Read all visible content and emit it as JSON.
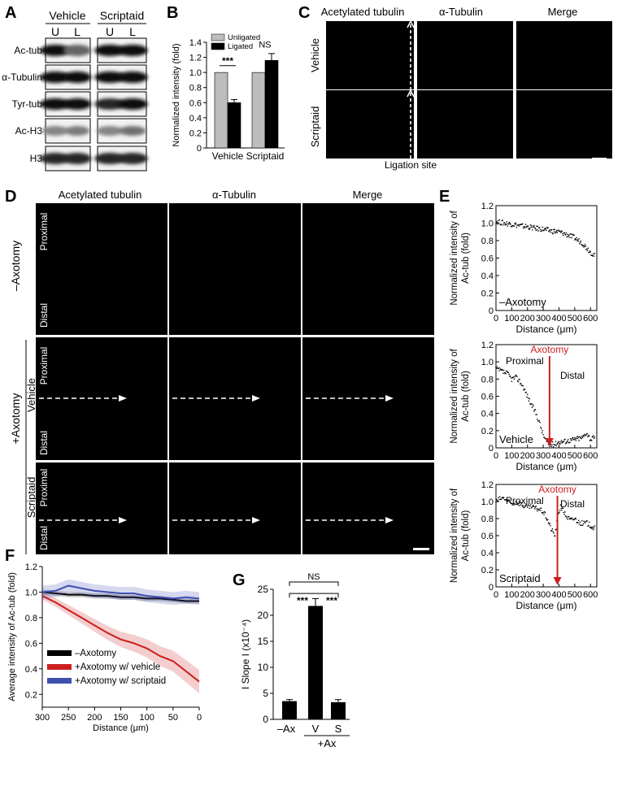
{
  "panel_letters": {
    "a": "A",
    "b": "B",
    "c": "C",
    "d": "D",
    "e": "E",
    "f": "F",
    "g": "G"
  },
  "panelA": {
    "groups": [
      "Vehicle",
      "Scriptaid"
    ],
    "lanes": [
      "U",
      "L",
      "U",
      "L"
    ],
    "rows": [
      "Ac-tub",
      "α-Tubulin",
      "Tyr-tub",
      "Ac-H3",
      "H3"
    ]
  },
  "panelC": {
    "columns": [
      "Acetylated tubulin",
      "α-Tubulin",
      "Merge"
    ],
    "rows": [
      "Vehicle",
      "Scriptaid"
    ],
    "caption": "Ligation site"
  },
  "panelD": {
    "columns": [
      "Acetylated tubulin",
      "α-Tubulin",
      "Merge"
    ],
    "group_minus": "–Axotomy",
    "group_plus": "+Axotomy",
    "sub_rows": [
      "Vehicle",
      "Scriptaid"
    ],
    "proximal": "Proximal",
    "distal": "Distal"
  },
  "colors": {
    "green": "#4fbf3a",
    "red": "#e0261c",
    "yellow": "#d6b51c",
    "accent_red": "#cc1f1f",
    "blue": "#3f4fb0"
  },
  "chart_data": [
    {
      "panel": "B",
      "type": "bar",
      "categories": [
        "Vehicle",
        "Scriptaid"
      ],
      "series": [
        {
          "name": "Unligated",
          "values": [
            1.0,
            1.0
          ],
          "color": "#bdbdbd"
        },
        {
          "name": "Ligated",
          "values": [
            0.6,
            1.16
          ],
          "errors": [
            0.04,
            0.09
          ],
          "color": "#000000"
        }
      ],
      "ylabel": "Normalized intensity (fold)",
      "ylim": [
        0,
        1.4
      ],
      "yticks": [
        "0",
        "0.2",
        "0.4",
        "0.6",
        "0.8",
        "1.0",
        "1.2",
        "1.4"
      ],
      "annotations": [
        "***",
        "NS"
      ],
      "legend": "top-left"
    },
    {
      "panel": "E1",
      "type": "scatter",
      "x": [
        0,
        50,
        100,
        150,
        200,
        250,
        300,
        350,
        400,
        450,
        500,
        550,
        600,
        630
      ],
      "y": [
        1.02,
        1.0,
        0.99,
        0.97,
        0.96,
        0.94,
        0.93,
        0.91,
        0.9,
        0.87,
        0.83,
        0.77,
        0.67,
        0.62
      ],
      "xlabel": "Distance (μm)",
      "ylabel": "Normalized intensity of Ac-tub (fold)",
      "xlim": [
        0,
        640
      ],
      "ylim": [
        0,
        1.2
      ],
      "xticks": [
        "0",
        "100",
        "200",
        "300",
        "400",
        "500",
        "600"
      ],
      "yticks": [
        "0",
        "0.2",
        "0.4",
        "0.6",
        "0.8",
        "1.0",
        "1.2"
      ],
      "label": "–Axotomy"
    },
    {
      "panel": "E2",
      "type": "scatter",
      "x": [
        0,
        25,
        50,
        75,
        100,
        125,
        150,
        175,
        200,
        225,
        250,
        275,
        300,
        325,
        340,
        360,
        380,
        400,
        450,
        500,
        550,
        575,
        600,
        630
      ],
      "y": [
        0.92,
        0.9,
        0.88,
        0.86,
        0.8,
        0.82,
        0.78,
        0.7,
        0.6,
        0.5,
        0.42,
        0.3,
        0.15,
        0.06,
        0.03,
        0.04,
        0.05,
        0.07,
        0.08,
        0.1,
        0.12,
        0.18,
        0.1,
        0.12
      ],
      "xlabel": "Distance (μm)",
      "ylabel": "Normalized intensity of Ac-tub (fold)",
      "xlim": [
        0,
        640
      ],
      "ylim": [
        0,
        1.2
      ],
      "xticks": [
        "0",
        "100",
        "200",
        "300",
        "400",
        "500",
        "600"
      ],
      "yticks": [
        "0",
        "0.2",
        "0.4",
        "0.6",
        "0.8",
        "1.0",
        "1.2"
      ],
      "label": "Vehicle",
      "marker_x": 340,
      "annotations": [
        "Proximal",
        "Axotomy",
        "Distal"
      ]
    },
    {
      "panel": "E3",
      "type": "scatter",
      "x": [
        0,
        25,
        50,
        75,
        100,
        125,
        150,
        175,
        200,
        225,
        250,
        275,
        300,
        325,
        350,
        375,
        390,
        410,
        430,
        450,
        475,
        500,
        525,
        550,
        575,
        600,
        630
      ],
      "y": [
        1.0,
        1.03,
        1.04,
        1.0,
        0.97,
        0.99,
        0.98,
        0.95,
        0.93,
        0.94,
        0.92,
        0.91,
        0.88,
        0.8,
        0.68,
        0.6,
        0.8,
        0.95,
        0.88,
        0.82,
        0.78,
        0.8,
        0.76,
        0.74,
        0.75,
        0.72,
        0.68
      ],
      "xlabel": "Distance (μm)",
      "ylabel": "Normalized intensity of Ac-tub (fold)",
      "xlim": [
        0,
        640
      ],
      "ylim": [
        0,
        1.2
      ],
      "xticks": [
        "0",
        "100",
        "200",
        "300",
        "400",
        "500",
        "600"
      ],
      "yticks": [
        "0",
        "0.2",
        "0.4",
        "0.6",
        "0.8",
        "1.0",
        "1.2"
      ],
      "label": "Scriptaid",
      "marker_x": 390,
      "annotations": [
        "Proximal",
        "Axotomy",
        "Distal"
      ]
    },
    {
      "panel": "F",
      "type": "line",
      "x": [
        300,
        275,
        250,
        225,
        200,
        175,
        150,
        125,
        100,
        75,
        50,
        25,
        0
      ],
      "series": [
        {
          "name": "–Axotomy",
          "values": [
            1.0,
            0.99,
            0.98,
            0.98,
            0.97,
            0.97,
            0.96,
            0.96,
            0.95,
            0.95,
            0.94,
            0.93,
            0.93
          ],
          "color": "#000000"
        },
        {
          "name": "+Axotomy w/ vehicle",
          "values": [
            0.97,
            0.92,
            0.86,
            0.8,
            0.74,
            0.68,
            0.63,
            0.6,
            0.56,
            0.5,
            0.46,
            0.38,
            0.3
          ],
          "color": "#cc1f1f"
        },
        {
          "name": "+Axotomy w/ scriptaid",
          "values": [
            1.0,
            1.01,
            1.05,
            1.03,
            1.01,
            1.0,
            0.99,
            0.99,
            0.97,
            0.96,
            0.95,
            0.96,
            0.95
          ],
          "color": "#3f4fb0"
        }
      ],
      "xlabel": "Distance (μm)",
      "ylabel": "Average intensity of Ac-tub (fold)",
      "xlim": [
        300,
        0
      ],
      "ylim": [
        0.1,
        1.2
      ],
      "xticks": [
        "300",
        "250",
        "200",
        "150",
        "100",
        "50",
        "0"
      ],
      "yticks": [
        "0.2",
        "0.4",
        "0.6",
        "0.8",
        "1.0",
        "1.2"
      ],
      "legend": "bottom-left"
    },
    {
      "panel": "G",
      "type": "bar",
      "categories": [
        "–Ax",
        "V",
        "S"
      ],
      "values": [
        3.5,
        21.8,
        3.3
      ],
      "errors": [
        0.3,
        1.4,
        0.5
      ],
      "ylabel": "I Slope I (x10⁻⁴)",
      "ylim": [
        0,
        25
      ],
      "yticks": [
        "0",
        "5",
        "10",
        "15",
        "20",
        "25"
      ],
      "group_label": "+Ax",
      "annotations": [
        "***",
        "***",
        "NS"
      ]
    }
  ]
}
